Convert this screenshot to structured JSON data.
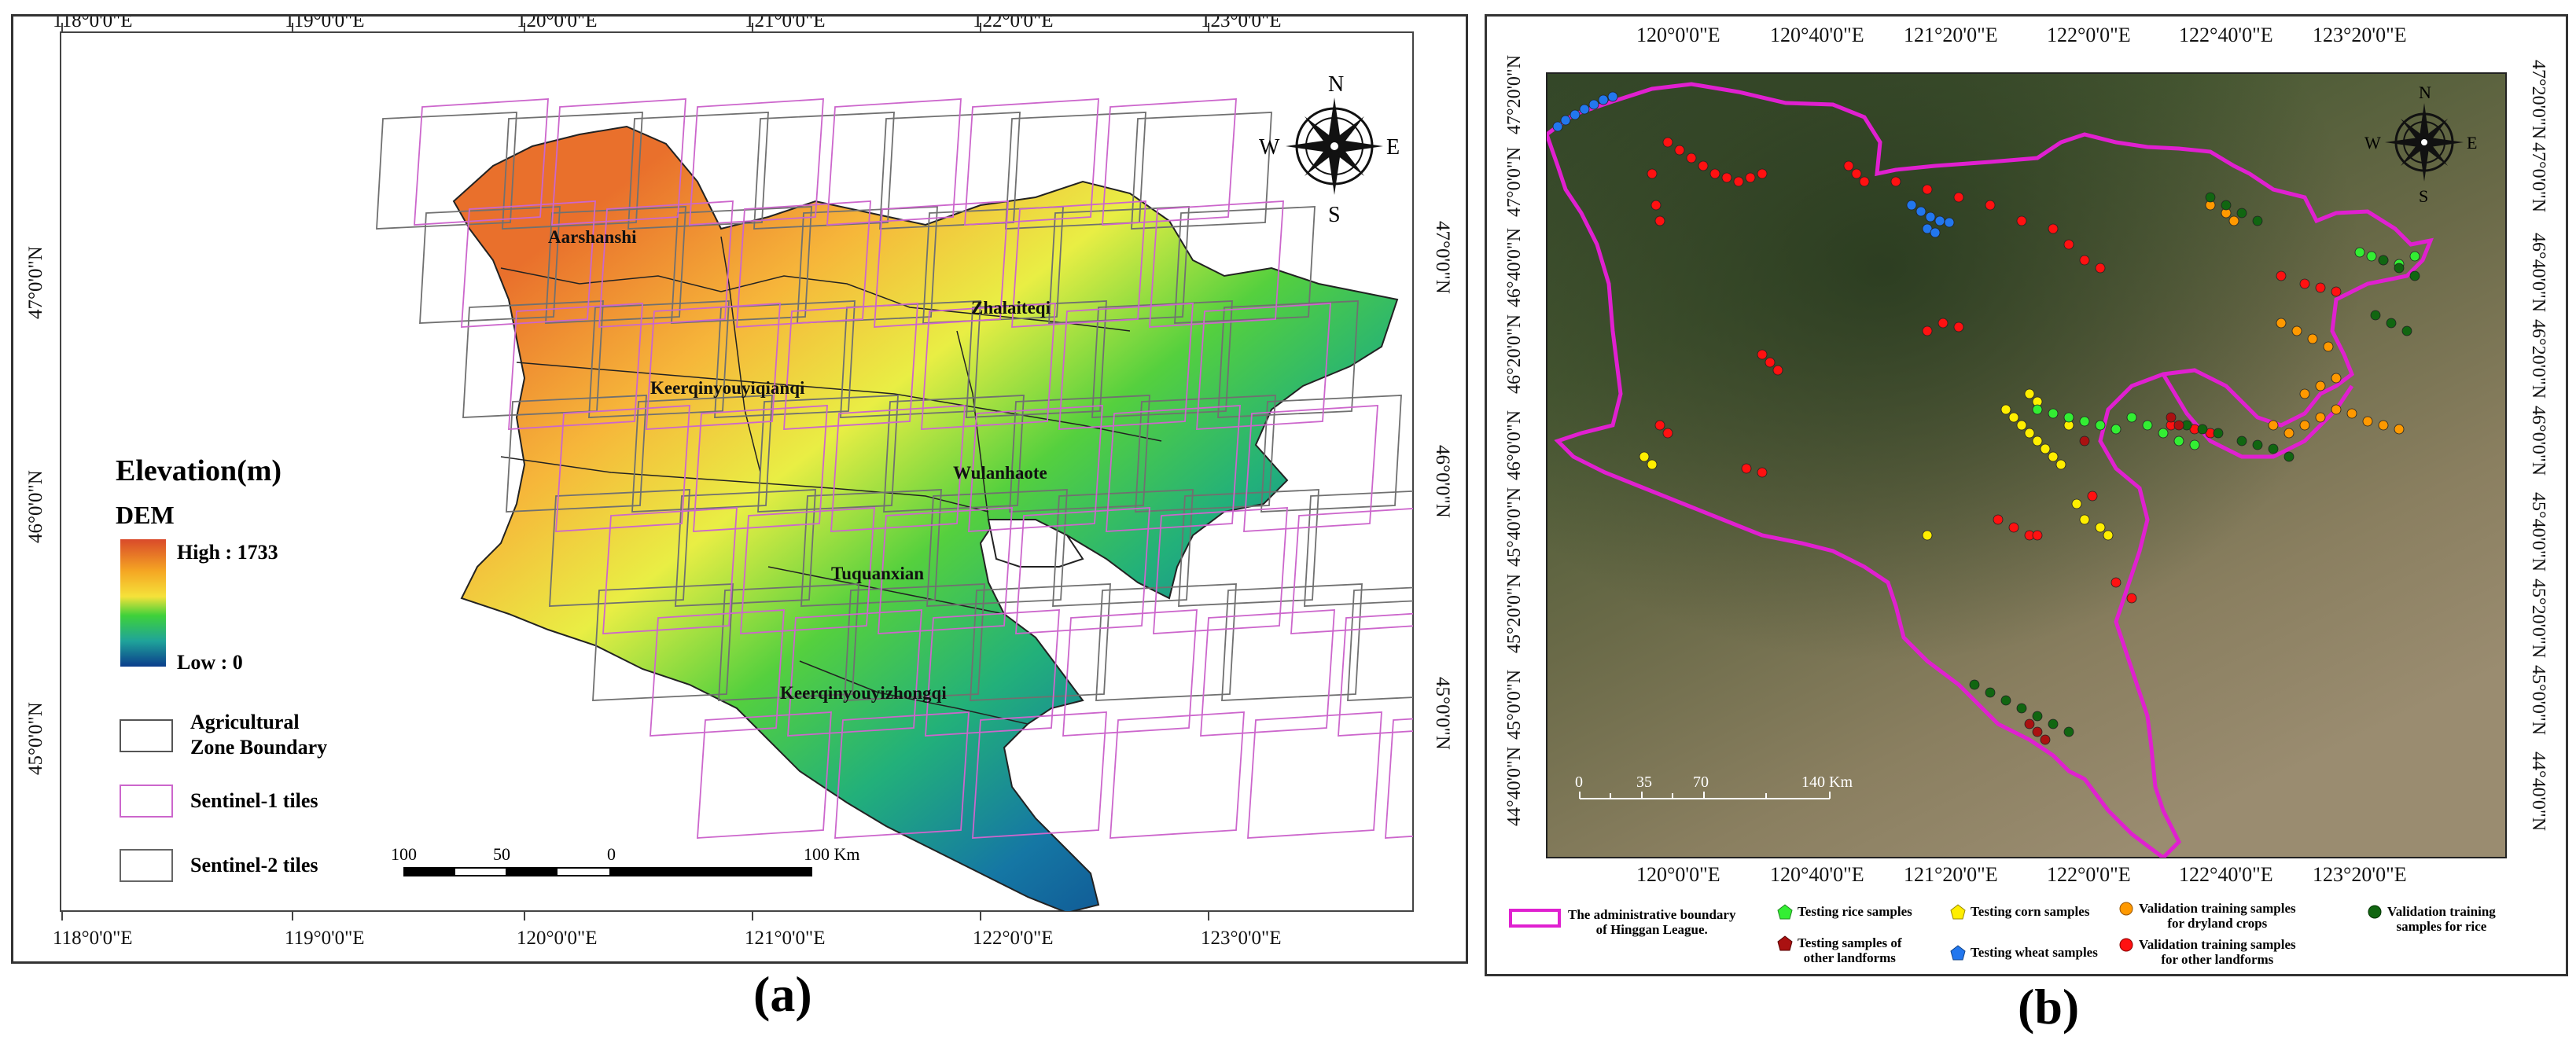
{
  "panel_a": {
    "caption": "(a)",
    "lon_labels": [
      "118°0'0\"E",
      "119°0'0\"E",
      "120°0'0\"E",
      "121°0'0\"E",
      "122°0'0\"E",
      "123°0'0\"E"
    ],
    "lat_labels": [
      "47°0'0\"N",
      "46°0'0\"N",
      "45°0'0\"N"
    ],
    "region_labels": [
      "Aarshanshi",
      "Zhalaiteqi",
      "Keerqinyouyiqianqi",
      "Wulanhaote",
      "Tuquanxian",
      "Keerqinyouyizhongqi"
    ],
    "legend": {
      "title": "Elevation(m)",
      "dem_label": "DEM",
      "high_label": "High : 1733",
      "low_label": "Low : 0",
      "high_value": 1733,
      "low_value": 0,
      "items": [
        {
          "label": "Agricultural\nZone Boundary",
          "color": "#555555"
        },
        {
          "label": "Sentinel-1 tiles",
          "color": "#cc66cc"
        },
        {
          "label": "Sentinel-2 tiles",
          "color": "#666666"
        }
      ]
    },
    "scale_bar": {
      "labels": [
        "100",
        "50",
        "0",
        "100 Km"
      ]
    },
    "compass": {
      "n": "N",
      "s": "S",
      "e": "E",
      "w": "W"
    }
  },
  "panel_b": {
    "caption": "(b)",
    "lon_labels": [
      "120°0'0\"E",
      "120°40'0\"E",
      "121°20'0\"E",
      "122°0'0\"E",
      "122°40'0\"E",
      "123°20'0\"E"
    ],
    "lat_labels": [
      "47°20'0\"N",
      "47°0'0\"N",
      "46°40'0\"N",
      "46°20'0\"N",
      "46°0'0\"N",
      "45°40'0\"N",
      "45°20'0\"N",
      "45°0'0\"N",
      "44°40'0\"N"
    ],
    "scale_bar": {
      "labels": [
        "0",
        "35",
        "70",
        "140 Km"
      ]
    },
    "compass": {
      "n": "N",
      "s": "S",
      "e": "E",
      "w": "W"
    },
    "legend": [
      {
        "label": "The administrative boundary\nof Hinggan League.",
        "symbol": "boundary",
        "color": "#e020d0"
      },
      {
        "label": "Testing rice samples",
        "symbol": "pentagon",
        "color": "#33ee33"
      },
      {
        "label": "Testing samples of\nother landforms",
        "symbol": "pentagon",
        "color": "#aa1111"
      },
      {
        "label": "Testing corn samples",
        "symbol": "pentagon",
        "color": "#ffee00"
      },
      {
        "label": "Testing wheat samples",
        "symbol": "pentagon",
        "color": "#2277ee"
      },
      {
        "label": "Validation training samples\nfor dryland crops",
        "symbol": "circle",
        "color": "#ff9900"
      },
      {
        "label": "Validation training samples\nfor other landforms",
        "symbol": "circle",
        "color": "#ff1111"
      },
      {
        "label": "Validation training\nsamples for rice",
        "symbol": "circle",
        "color": "#116611"
      }
    ]
  }
}
